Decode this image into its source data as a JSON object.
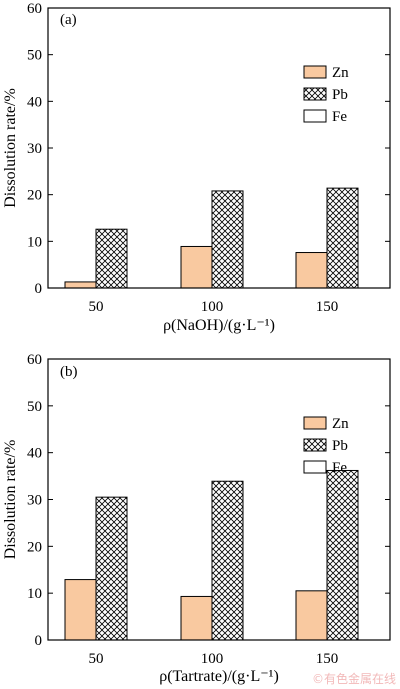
{
  "colors": {
    "zn_fill": "#f9c9a0",
    "pb_fill": "#ffffff",
    "fe_fill": "#ffffff",
    "axis": "#000000"
  },
  "watermark": "©有色金属在线",
  "chart_data": [
    {
      "type": "bar",
      "panel_label": "(a)",
      "xlabel": "ρ(NaOH)/(g·L⁻¹)",
      "ylabel": "Dissolution rate/%",
      "categories": [
        "50",
        "100",
        "150"
      ],
      "ylim": [
        0,
        60
      ],
      "yticks": [
        0,
        10,
        20,
        30,
        40,
        50,
        60
      ],
      "legend": {
        "placement": "top-right",
        "entries": [
          "Zn",
          "Pb",
          "Fe"
        ]
      },
      "series": [
        {
          "name": "Zn",
          "values": [
            1.3,
            8.9,
            7.6
          ]
        },
        {
          "name": "Pb",
          "values": [
            12.6,
            20.8,
            21.4
          ]
        },
        {
          "name": "Fe",
          "values": [
            0,
            0,
            0
          ]
        }
      ]
    },
    {
      "type": "bar",
      "panel_label": "(b)",
      "xlabel": "ρ(Tartrate)/(g·L⁻¹)",
      "ylabel": "Dissolution rate/%",
      "categories": [
        "50",
        "100",
        "150"
      ],
      "ylim": [
        0,
        60
      ],
      "yticks": [
        0,
        10,
        20,
        30,
        40,
        50,
        60
      ],
      "legend": {
        "placement": "top-right",
        "entries": [
          "Zn",
          "Pb",
          "Fe"
        ]
      },
      "series": [
        {
          "name": "Zn",
          "values": [
            12.9,
            9.3,
            10.5
          ]
        },
        {
          "name": "Pb",
          "values": [
            30.5,
            33.9,
            36.2
          ]
        },
        {
          "name": "Fe",
          "values": [
            0,
            0,
            0
          ]
        }
      ]
    }
  ]
}
